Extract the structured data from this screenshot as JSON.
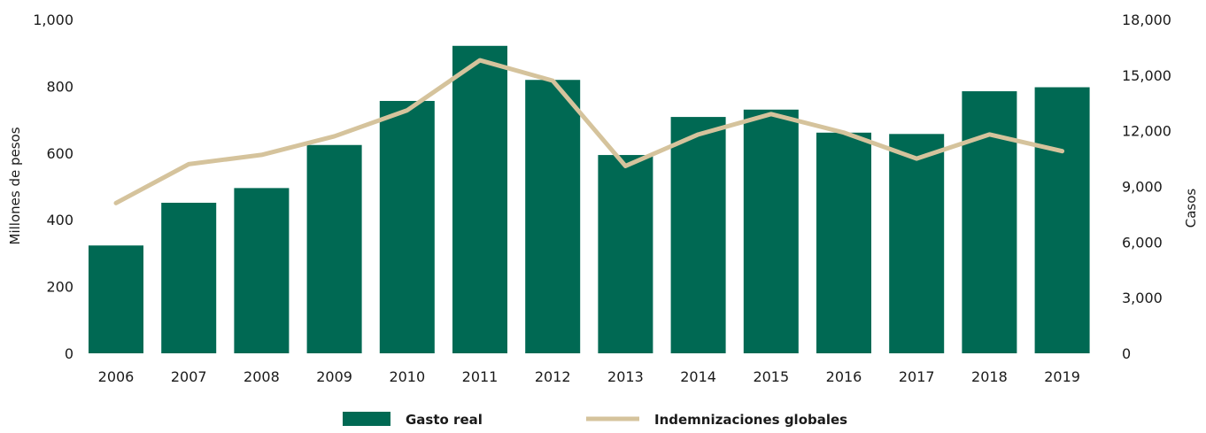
{
  "chart_data": {
    "type": "bar",
    "categories": [
      "2006",
      "2007",
      "2008",
      "2009",
      "2010",
      "2011",
      "2012",
      "2013",
      "2014",
      "2015",
      "2016",
      "2017",
      "2018",
      "2019"
    ],
    "series": [
      {
        "name": "Gasto real",
        "type": "bar",
        "axis": "left",
        "values": [
          323,
          451,
          495,
          624,
          756,
          921,
          819,
          594,
          708,
          730,
          661,
          657,
          785,
          797
        ]
      },
      {
        "name": "Indemnizaciones globales",
        "type": "line",
        "axis": "right",
        "values": [
          8100,
          10200,
          10700,
          11700,
          13100,
          15800,
          14700,
          10100,
          11800,
          12900,
          11900,
          10500,
          11800,
          10900
        ]
      }
    ],
    "ylabel": "Millones de pesos",
    "ylim": [
      0,
      1000
    ],
    "yticks": [
      "0",
      "200",
      "400",
      "600",
      "800",
      "1,000"
    ],
    "y2label": "Casos",
    "y2lim": [
      0,
      18000
    ],
    "y2ticks": [
      "0",
      "3,000",
      "6,000",
      "9,000",
      "12,000",
      "15,000",
      "18,000"
    ],
    "legend_position": "bottom",
    "grid": false,
    "colors": {
      "bar": "#006953",
      "line": "#d5c39c"
    }
  }
}
